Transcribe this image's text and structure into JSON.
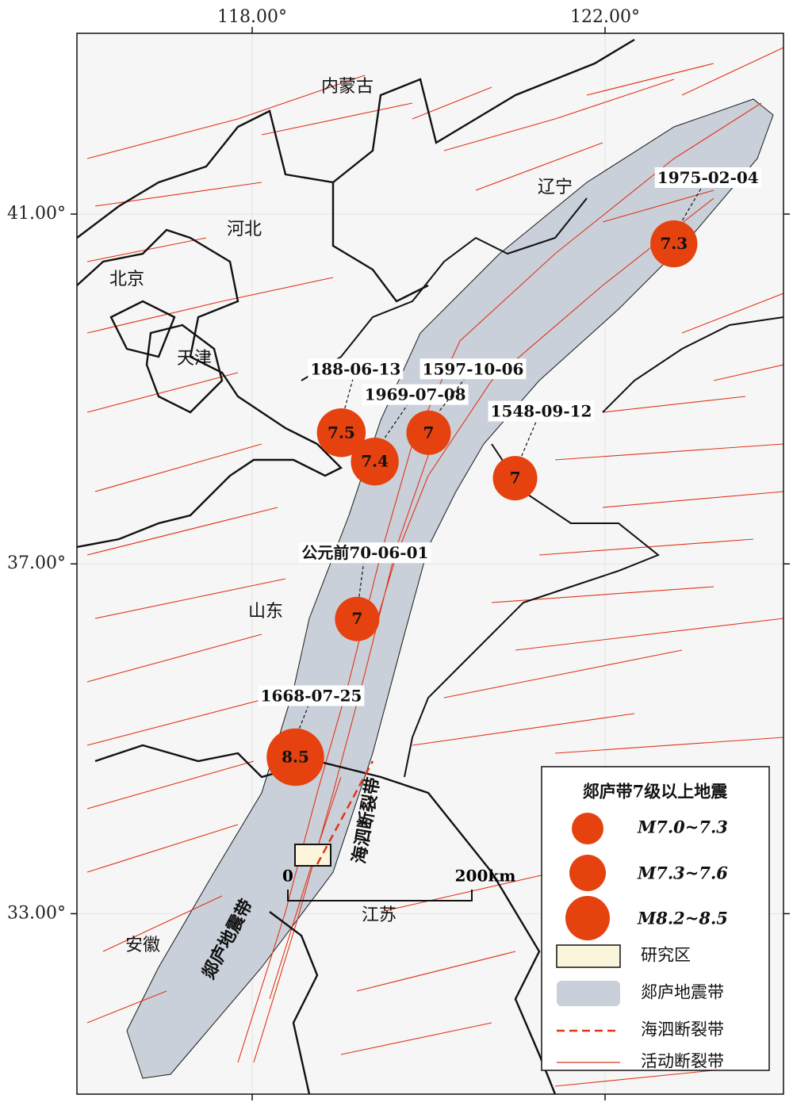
{
  "axes": {
    "x_ticks": [
      {
        "value": 118,
        "label": "118.00°"
      },
      {
        "value": 122,
        "label": "122.00°"
      }
    ],
    "y_ticks": [
      {
        "value": 41,
        "label": "41.00°"
      },
      {
        "value": 37,
        "label": "37.00°"
      },
      {
        "value": 33,
        "label": "33.00°"
      }
    ]
  },
  "regions": [
    "内蒙古",
    "辽宁",
    "河北",
    "北京",
    "天津",
    "山东",
    "江苏",
    "安徽"
  ],
  "fault_labels": [
    "郯庐地震带",
    "海泗断裂带"
  ],
  "earthquakes": [
    {
      "date": "1975-02-04",
      "magnitude": 7.3,
      "lon": 122.78,
      "lat": 40.66
    },
    {
      "date": "188-06-13",
      "magnitude": 7.5,
      "lon": 119.01,
      "lat": 38.5
    },
    {
      "date": "1969-07-08",
      "magnitude": 7.4,
      "lon": 119.39,
      "lat": 38.17
    },
    {
      "date": "1597-10-06",
      "magnitude": 7,
      "lon": 120.0,
      "lat": 38.5
    },
    {
      "date": "1548-09-12",
      "magnitude": 7,
      "lon": 120.98,
      "lat": 37.98
    },
    {
      "date": "公元前70-06-01",
      "magnitude": 7,
      "lon": 119.19,
      "lat": 36.37
    },
    {
      "date": "1668-07-25",
      "magnitude": 8.5,
      "lon": 118.49,
      "lat": 34.79
    }
  ],
  "scale_bar": {
    "start": "0",
    "end": "200km"
  },
  "legend": {
    "title": "郯庐带7级以上地震",
    "items": [
      "M7.0~7.3",
      "M7.3~7.6",
      "M8.2~8.5",
      "研究区",
      "郯庐地震带",
      "海泗断裂带",
      "活动断裂带"
    ]
  }
}
